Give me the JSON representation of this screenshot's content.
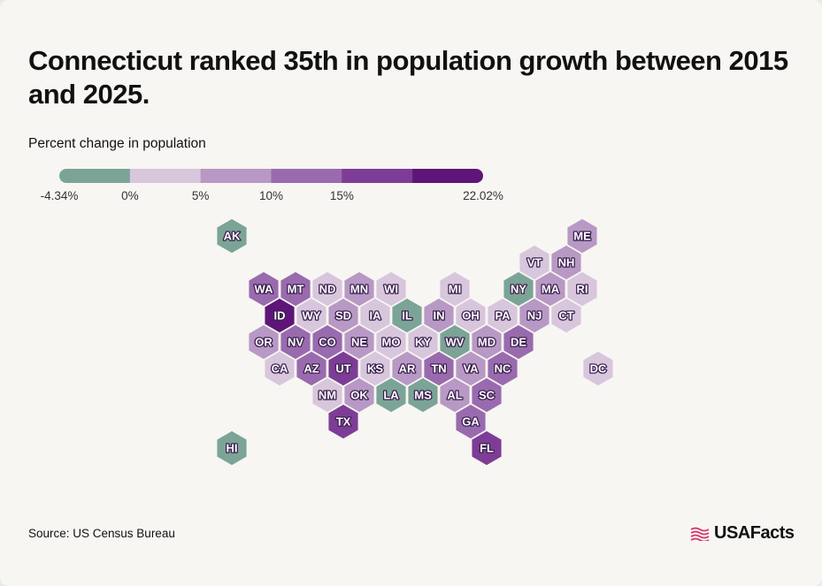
{
  "title": "Connecticut ranked 35th in population growth between 2015 and 2025.",
  "legend": {
    "title": "Percent change in population",
    "min_label": "-4.34%",
    "max_label": "22.02%",
    "ticks": [
      "0%",
      "5%",
      "10%",
      "15%"
    ],
    "segments": [
      {
        "from": -4.34,
        "to": 0,
        "color": "#7ba497"
      },
      {
        "from": 0,
        "to": 5,
        "color": "#d8c6dc"
      },
      {
        "from": 5,
        "to": 10,
        "color": "#b898c4"
      },
      {
        "from": 10,
        "to": 15,
        "color": "#9a6aae"
      },
      {
        "from": 15,
        "to": 20,
        "color": "#7d3d96"
      },
      {
        "from": 20,
        "to": 22.02,
        "color": "#5e1577"
      }
    ]
  },
  "map": {
    "states": [
      {
        "abbr": "AK",
        "row": 0,
        "col": 0,
        "bin": 0
      },
      {
        "abbr": "ME",
        "row": 0,
        "col": 11,
        "bin": 2
      },
      {
        "abbr": "VT",
        "row": 1,
        "col": 9.5,
        "bin": 1
      },
      {
        "abbr": "NH",
        "row": 1,
        "col": 10.5,
        "bin": 2
      },
      {
        "abbr": "WA",
        "row": 2,
        "col": 1,
        "bin": 3
      },
      {
        "abbr": "MT",
        "row": 2,
        "col": 2,
        "bin": 3
      },
      {
        "abbr": "ND",
        "row": 2,
        "col": 3,
        "bin": 1
      },
      {
        "abbr": "MN",
        "row": 2,
        "col": 4,
        "bin": 2
      },
      {
        "abbr": "WI",
        "row": 2,
        "col": 5,
        "bin": 1
      },
      {
        "abbr": "MI",
        "row": 2,
        "col": 7,
        "bin": 1
      },
      {
        "abbr": "NY",
        "row": 2,
        "col": 9,
        "bin": 0
      },
      {
        "abbr": "MA",
        "row": 2,
        "col": 10,
        "bin": 2
      },
      {
        "abbr": "RI",
        "row": 2,
        "col": 11,
        "bin": 1
      },
      {
        "abbr": "ID",
        "row": 3,
        "col": 1.5,
        "bin": 5
      },
      {
        "abbr": "WY",
        "row": 3,
        "col": 2.5,
        "bin": 1
      },
      {
        "abbr": "SD",
        "row": 3,
        "col": 3.5,
        "bin": 2
      },
      {
        "abbr": "IA",
        "row": 3,
        "col": 4.5,
        "bin": 1
      },
      {
        "abbr": "IL",
        "row": 3,
        "col": 5.5,
        "bin": 0
      },
      {
        "abbr": "IN",
        "row": 3,
        "col": 6.5,
        "bin": 2
      },
      {
        "abbr": "OH",
        "row": 3,
        "col": 7.5,
        "bin": 1
      },
      {
        "abbr": "PA",
        "row": 3,
        "col": 8.5,
        "bin": 1
      },
      {
        "abbr": "NJ",
        "row": 3,
        "col": 9.5,
        "bin": 2
      },
      {
        "abbr": "CT",
        "row": 3,
        "col": 10.5,
        "bin": 1
      },
      {
        "abbr": "OR",
        "row": 4,
        "col": 1,
        "bin": 2
      },
      {
        "abbr": "NV",
        "row": 4,
        "col": 2,
        "bin": 3
      },
      {
        "abbr": "CO",
        "row": 4,
        "col": 3,
        "bin": 3
      },
      {
        "abbr": "NE",
        "row": 4,
        "col": 4,
        "bin": 2
      },
      {
        "abbr": "MO",
        "row": 4,
        "col": 5,
        "bin": 1
      },
      {
        "abbr": "KY",
        "row": 4,
        "col": 6,
        "bin": 1
      },
      {
        "abbr": "WV",
        "row": 4,
        "col": 7,
        "bin": 0
      },
      {
        "abbr": "MD",
        "row": 4,
        "col": 8,
        "bin": 2
      },
      {
        "abbr": "DE",
        "row": 4,
        "col": 9,
        "bin": 3
      },
      {
        "abbr": "CA",
        "row": 5,
        "col": 1.5,
        "bin": 1
      },
      {
        "abbr": "AZ",
        "row": 5,
        "col": 2.5,
        "bin": 3
      },
      {
        "abbr": "UT",
        "row": 5,
        "col": 3.5,
        "bin": 4
      },
      {
        "abbr": "KS",
        "row": 5,
        "col": 4.5,
        "bin": 1
      },
      {
        "abbr": "AR",
        "row": 5,
        "col": 5.5,
        "bin": 2
      },
      {
        "abbr": "TN",
        "row": 5,
        "col": 6.5,
        "bin": 3
      },
      {
        "abbr": "VA",
        "row": 5,
        "col": 7.5,
        "bin": 2
      },
      {
        "abbr": "NC",
        "row": 5,
        "col": 8.5,
        "bin": 3
      },
      {
        "abbr": "DC",
        "row": 5,
        "col": 11.5,
        "bin": 1
      },
      {
        "abbr": "NM",
        "row": 6,
        "col": 3,
        "bin": 1
      },
      {
        "abbr": "OK",
        "row": 6,
        "col": 4,
        "bin": 2
      },
      {
        "abbr": "LA",
        "row": 6,
        "col": 5,
        "bin": 0
      },
      {
        "abbr": "MS",
        "row": 6,
        "col": 6,
        "bin": 0
      },
      {
        "abbr": "AL",
        "row": 6,
        "col": 7,
        "bin": 2
      },
      {
        "abbr": "SC",
        "row": 6,
        "col": 8,
        "bin": 3
      },
      {
        "abbr": "TX",
        "row": 7,
        "col": 3.5,
        "bin": 4
      },
      {
        "abbr": "GA",
        "row": 7,
        "col": 7.5,
        "bin": 3
      },
      {
        "abbr": "HI",
        "row": 8,
        "col": 0,
        "bin": 0
      },
      {
        "abbr": "FL",
        "row": 8,
        "col": 8,
        "bin": 4
      }
    ]
  },
  "source": "Source: US Census Bureau",
  "brand": {
    "name": "USAFacts",
    "accent": "#d6336c"
  }
}
